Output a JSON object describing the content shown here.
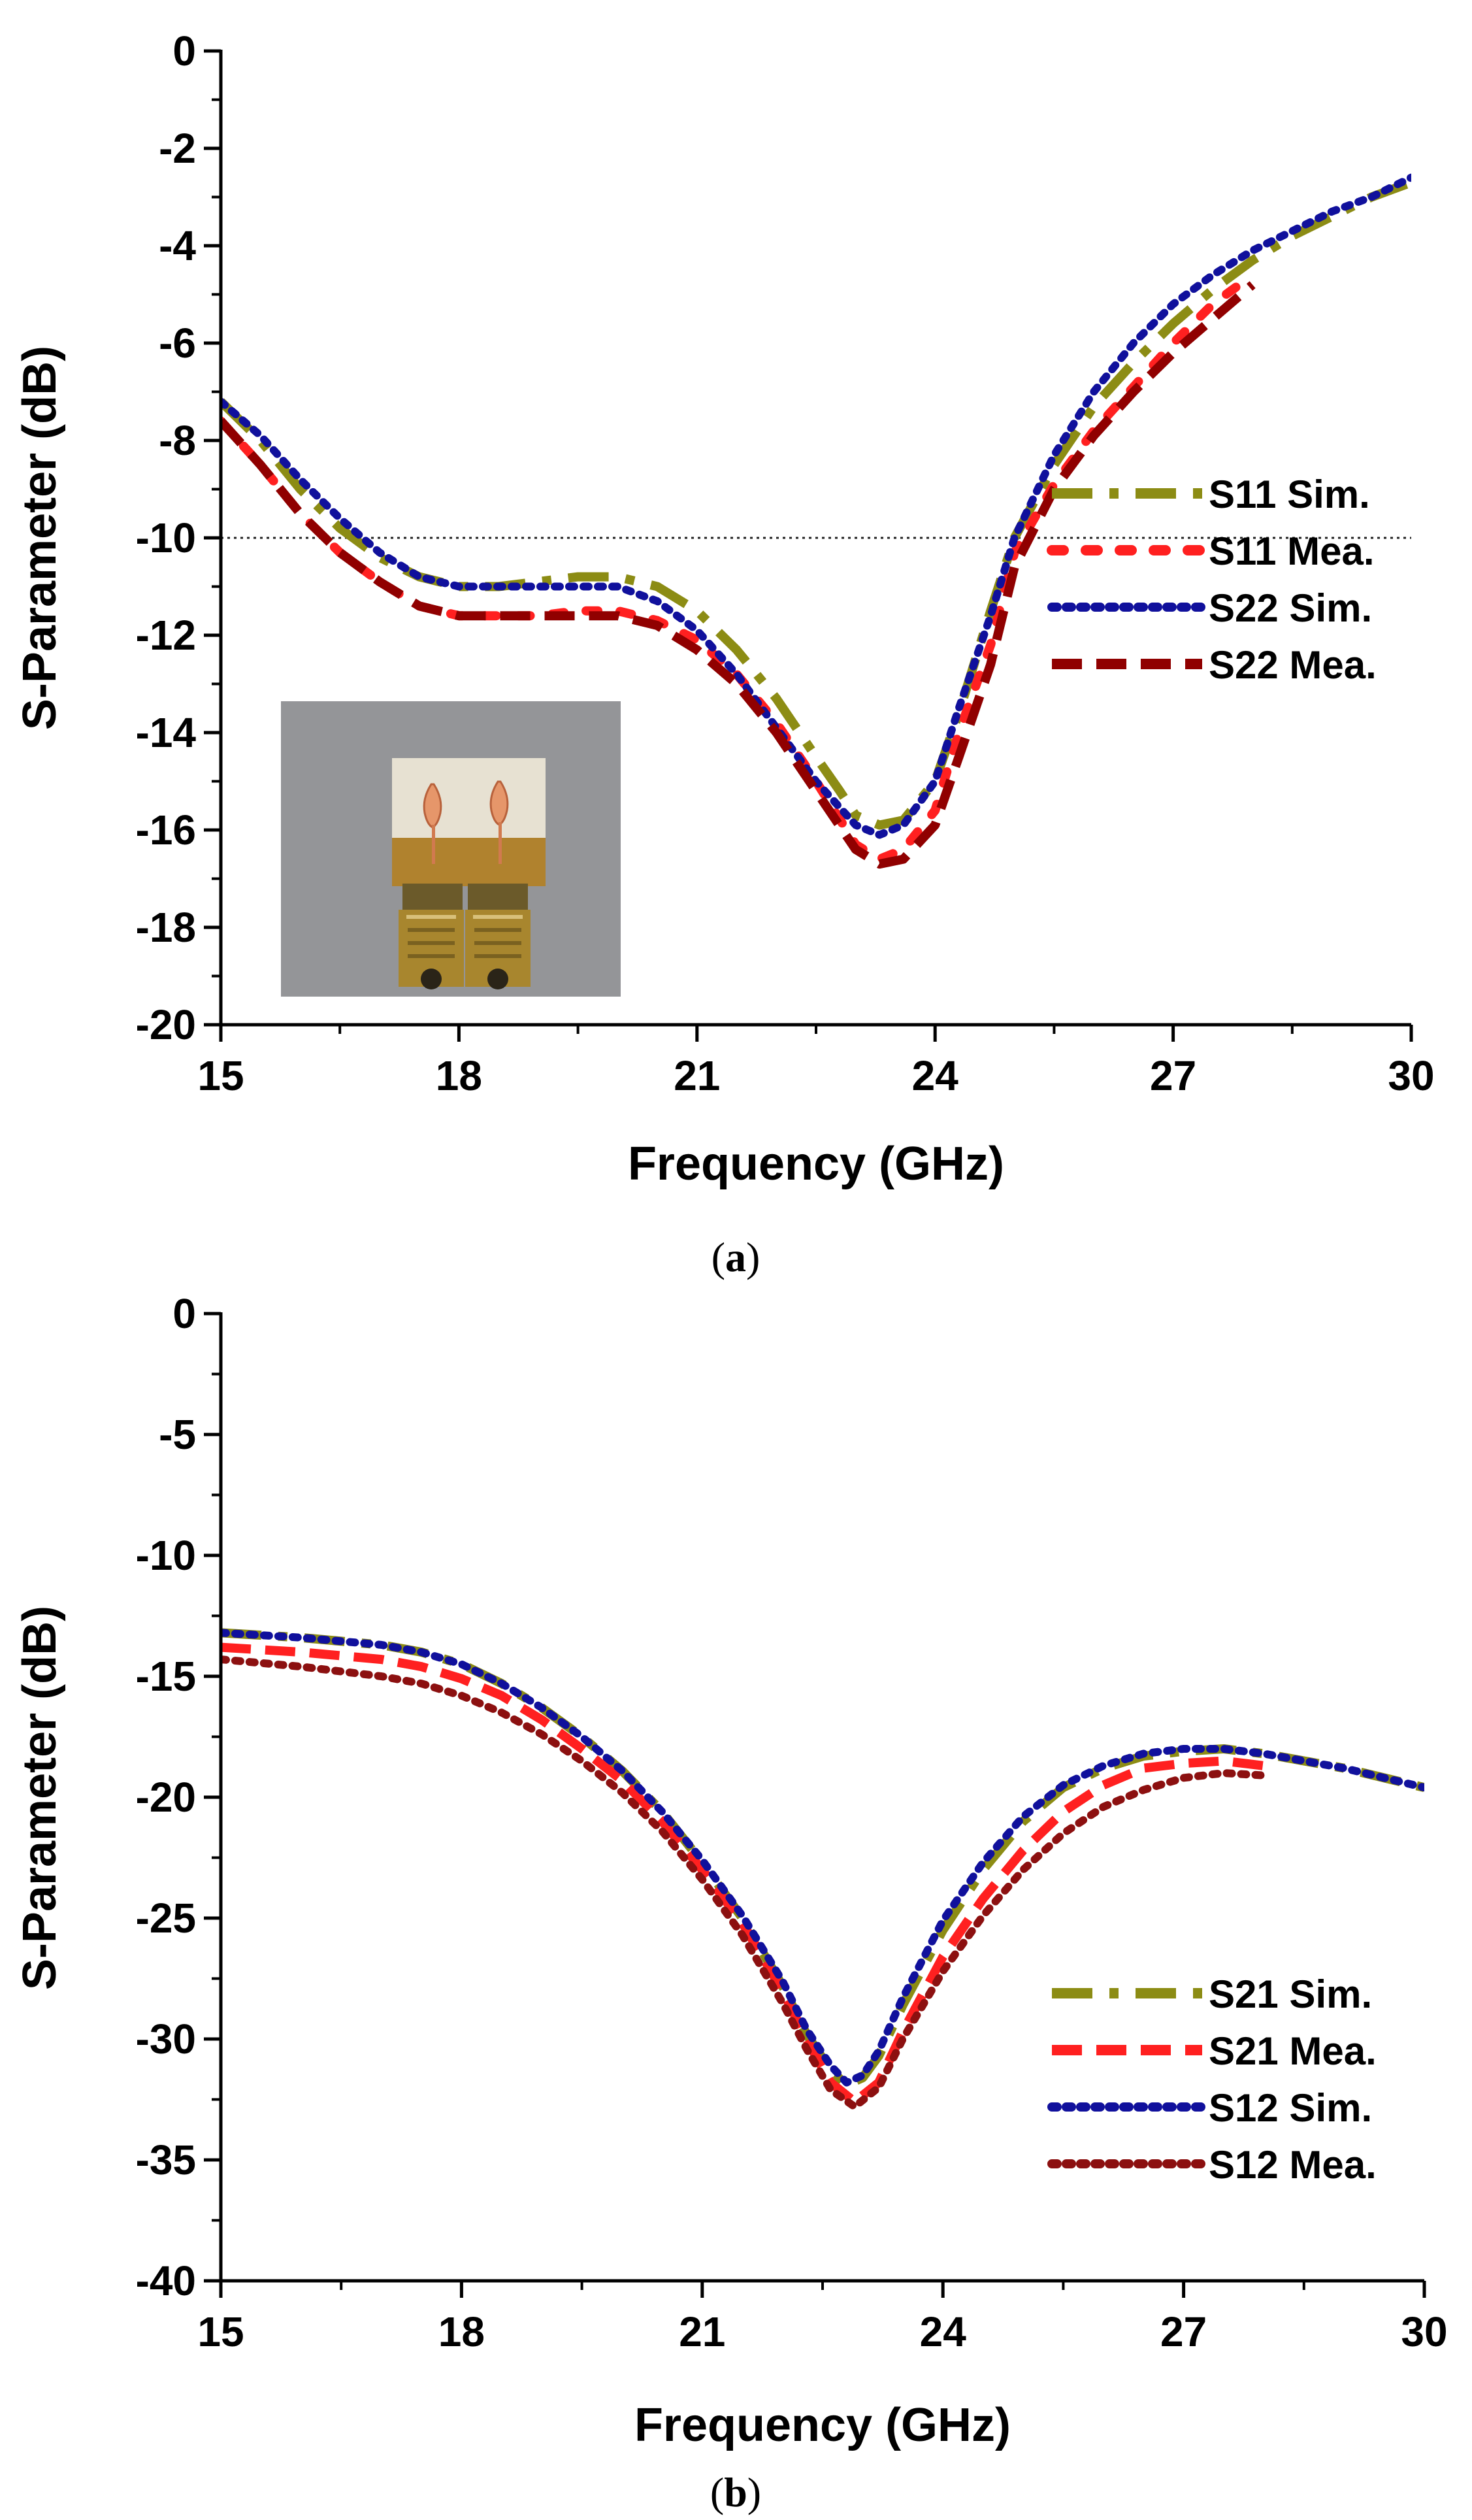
{
  "chart_data": [
    {
      "type": "line",
      "panel": "a",
      "caption_letter": "a",
      "xlabel": "Frequency (GHz)",
      "ylabel": "S-Parameter (dB)",
      "xlim": [
        15,
        30
      ],
      "ylim": [
        -20,
        0
      ],
      "xticks": [
        15,
        18,
        21,
        24,
        27,
        30
      ],
      "yticks": [
        0,
        -2,
        -4,
        -6,
        -8,
        -10,
        -12,
        -14,
        -16,
        -18,
        -20
      ],
      "reference_line": -10,
      "inset": "photo of fabricated two-port antenna with SMA connectors",
      "series": [
        {
          "name": "S11 Sim.",
          "color": "#8c8c14",
          "style": "dashdot",
          "x": [
            15,
            15.5,
            16,
            16.5,
            17,
            17.5,
            18,
            18.5,
            19,
            19.5,
            20,
            20.5,
            21,
            21.5,
            22,
            22.5,
            22.8,
            23,
            23.3,
            23.6,
            24,
            24.3,
            24.7,
            25,
            25.5,
            26,
            26.5,
            27,
            27.5,
            28,
            28.5,
            29,
            29.5,
            30
          ],
          "y": [
            -7.2,
            -8.0,
            -9.0,
            -9.8,
            -10.4,
            -10.8,
            -11.0,
            -11.0,
            -10.9,
            -10.8,
            -10.8,
            -11.0,
            -11.5,
            -12.3,
            -13.3,
            -14.5,
            -15.2,
            -15.7,
            -15.9,
            -15.8,
            -15.0,
            -13.6,
            -11.5,
            -10.0,
            -8.5,
            -7.3,
            -6.4,
            -5.6,
            -4.9,
            -4.3,
            -3.8,
            -3.4,
            -3.0,
            -2.7
          ]
        },
        {
          "name": "S11 Mea.",
          "color": "#ff2020",
          "style": "dotted-dash",
          "x": [
            15,
            15.5,
            16,
            16.5,
            17,
            17.5,
            18,
            18.5,
            19,
            19.5,
            20,
            20.5,
            21,
            21.5,
            22,
            22.5,
            23,
            23.3,
            23.6,
            24,
            24.3,
            24.7,
            25,
            25.5,
            26,
            26.5,
            27,
            27.5,
            28
          ],
          "y": [
            -7.6,
            -8.5,
            -9.5,
            -10.3,
            -10.9,
            -11.4,
            -11.6,
            -11.6,
            -11.6,
            -11.5,
            -11.5,
            -11.7,
            -12.1,
            -12.8,
            -13.8,
            -15.0,
            -16.3,
            -16.6,
            -16.4,
            -15.6,
            -14.0,
            -12.2,
            -10.3,
            -8.9,
            -7.8,
            -6.9,
            -6.0,
            -5.2,
            -4.6
          ]
        },
        {
          "name": "S22 Sim.",
          "color": "#10109c",
          "style": "dotted",
          "x": [
            15,
            15.5,
            16,
            16.5,
            17,
            17.5,
            18,
            18.5,
            19,
            19.5,
            20,
            20.5,
            21,
            21.5,
            22,
            22.5,
            23,
            23.3,
            23.6,
            24,
            24.3,
            24.7,
            25,
            25.5,
            26,
            26.5,
            27,
            27.5,
            28,
            28.5,
            29,
            29.5,
            30
          ],
          "y": [
            -7.2,
            -7.9,
            -8.8,
            -9.6,
            -10.3,
            -10.8,
            -11.0,
            -11.0,
            -11.0,
            -11.0,
            -11.0,
            -11.3,
            -11.9,
            -12.8,
            -13.9,
            -15.0,
            -15.9,
            -16.1,
            -15.9,
            -15.0,
            -13.5,
            -11.6,
            -10.0,
            -8.3,
            -7.0,
            -6.0,
            -5.2,
            -4.6,
            -4.1,
            -3.7,
            -3.3,
            -3.0,
            -2.6
          ]
        },
        {
          "name": "S22 Mea.",
          "color": "#900000",
          "style": "dashed",
          "x": [
            15,
            15.5,
            16,
            16.5,
            17,
            17.5,
            18,
            18.5,
            19,
            19.5,
            20,
            20.5,
            21,
            21.5,
            22,
            22.5,
            23,
            23.3,
            23.6,
            24,
            24.3,
            24.7,
            25,
            25.5,
            26,
            26.5,
            27,
            27.5,
            28
          ],
          "y": [
            -7.6,
            -8.5,
            -9.5,
            -10.3,
            -10.9,
            -11.4,
            -11.6,
            -11.6,
            -11.6,
            -11.6,
            -11.6,
            -11.8,
            -12.3,
            -13.0,
            -14.0,
            -15.2,
            -16.4,
            -16.7,
            -16.6,
            -15.9,
            -14.5,
            -12.6,
            -10.6,
            -9.0,
            -7.9,
            -7.0,
            -6.2,
            -5.5,
            -4.8
          ]
        }
      ]
    },
    {
      "type": "line",
      "panel": "b",
      "caption_letter": "b",
      "xlabel": "Frequency (GHz)",
      "ylabel": "S-Parameter (dB)",
      "xlim": [
        15,
        30
      ],
      "ylim": [
        -40,
        0
      ],
      "xticks": [
        15,
        18,
        21,
        24,
        27,
        30
      ],
      "yticks": [
        0,
        -5,
        -10,
        -15,
        -20,
        -25,
        -30,
        -35,
        -40
      ],
      "series": [
        {
          "name": "S21 Sim.",
          "color": "#8c8c14",
          "style": "dashdot",
          "x": [
            15,
            16,
            17,
            17.5,
            18,
            18.5,
            19,
            19.5,
            20,
            20.5,
            21,
            21.5,
            22,
            22.3,
            22.6,
            22.8,
            23,
            23.2,
            23.5,
            24,
            24.5,
            25,
            25.5,
            26,
            26.5,
            27,
            27.5,
            28,
            28.5,
            29,
            29.5,
            30
          ],
          "y": [
            -13.2,
            -13.4,
            -13.7,
            -14.0,
            -14.5,
            -15.3,
            -16.3,
            -17.5,
            -18.9,
            -20.6,
            -22.7,
            -25.0,
            -27.8,
            -29.8,
            -31.3,
            -31.9,
            -31.6,
            -30.7,
            -28.6,
            -25.5,
            -23.0,
            -21.0,
            -19.6,
            -18.8,
            -18.3,
            -18.1,
            -18.0,
            -18.2,
            -18.5,
            -18.8,
            -19.2,
            -19.6
          ]
        },
        {
          "name": "S21 Mea.",
          "color": "#ff2020",
          "style": "dashed",
          "x": [
            15,
            16,
            17,
            17.5,
            18,
            18.5,
            19,
            19.5,
            20,
            20.5,
            21,
            21.5,
            22,
            22.3,
            22.6,
            22.9,
            23.2,
            23.5,
            24,
            24.5,
            25,
            25.5,
            26,
            26.5,
            27,
            27.5,
            28
          ],
          "y": [
            -13.8,
            -14.0,
            -14.3,
            -14.6,
            -15.1,
            -15.8,
            -16.8,
            -18.0,
            -19.3,
            -21.0,
            -23.0,
            -25.2,
            -28.0,
            -30.0,
            -31.8,
            -32.6,
            -31.8,
            -29.7,
            -26.6,
            -24.2,
            -22.2,
            -20.6,
            -19.5,
            -18.8,
            -18.6,
            -18.5,
            -18.7
          ]
        },
        {
          "name": "S12 Sim.",
          "color": "#10109c",
          "style": "dotted",
          "x": [
            15,
            16,
            17,
            17.5,
            18,
            18.5,
            19,
            19.5,
            20,
            20.5,
            21,
            21.5,
            22,
            22.3,
            22.6,
            22.8,
            23,
            23.2,
            23.5,
            24,
            24.5,
            25,
            25.5,
            26,
            26.5,
            27,
            27.5,
            28,
            28.5,
            29,
            29.5,
            30
          ],
          "y": [
            -13.2,
            -13.4,
            -13.7,
            -14.0,
            -14.5,
            -15.3,
            -16.3,
            -17.5,
            -18.9,
            -20.6,
            -22.6,
            -24.9,
            -27.6,
            -29.6,
            -31.1,
            -31.8,
            -31.5,
            -30.5,
            -28.3,
            -25.1,
            -22.7,
            -20.8,
            -19.5,
            -18.7,
            -18.2,
            -18.0,
            -18.0,
            -18.2,
            -18.5,
            -18.8,
            -19.2,
            -19.6
          ]
        },
        {
          "name": "S12 Mea.",
          "color": "#8c1010",
          "style": "dotted",
          "x": [
            15,
            16,
            17,
            17.5,
            18,
            18.5,
            19,
            19.5,
            20,
            20.5,
            21,
            21.5,
            22,
            22.3,
            22.6,
            22.9,
            23.2,
            23.5,
            24,
            24.5,
            25,
            25.5,
            26,
            26.5,
            27,
            27.5,
            28
          ],
          "y": [
            -14.3,
            -14.6,
            -15.0,
            -15.3,
            -15.8,
            -16.5,
            -17.4,
            -18.5,
            -19.8,
            -21.4,
            -23.4,
            -25.7,
            -28.5,
            -30.4,
            -32.1,
            -32.8,
            -32.0,
            -30.0,
            -27.2,
            -24.9,
            -23.0,
            -21.5,
            -20.4,
            -19.7,
            -19.2,
            -19.0,
            -19.1
          ]
        }
      ]
    }
  ]
}
